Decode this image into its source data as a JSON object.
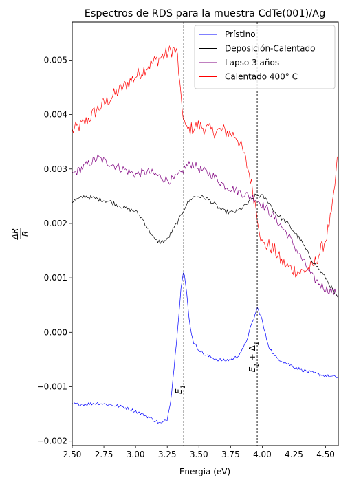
{
  "chart_data": {
    "type": "line",
    "title": "Espectros de RDS para la muestra CdTe(001)/Ag",
    "xlabel": "Energia (eV)",
    "ylabel": "ΔR/R",
    "xlim": [
      2.5,
      4.6
    ],
    "ylim": [
      -0.00208,
      0.0057
    ],
    "xticks": [
      2.5,
      2.75,
      3.0,
      3.25,
      3.5,
      3.75,
      4.0,
      4.25,
      4.5
    ],
    "xtick_labels": [
      "2.50",
      "2.75",
      "3.00",
      "3.25",
      "3.50",
      "3.75",
      "4.00",
      "4.25",
      "4.50"
    ],
    "yticks": [
      -0.002,
      -0.001,
      0.0,
      0.001,
      0.002,
      0.003,
      0.004,
      0.005
    ],
    "ytick_labels": [
      "−0.002",
      "−0.001",
      "0.000",
      "0.001",
      "0.002",
      "0.003",
      "0.004",
      "0.005"
    ],
    "legend_position": "upper-right",
    "grid": false,
    "series": [
      {
        "name": "Prístino",
        "color": "#0000ff",
        "noise": 3e-05,
        "x": [
          2.5,
          2.6,
          2.7,
          2.8,
          2.9,
          3.0,
          3.1,
          3.15,
          3.2,
          3.25,
          3.28,
          3.31,
          3.34,
          3.36,
          3.38,
          3.4,
          3.43,
          3.46,
          3.5,
          3.55,
          3.6,
          3.65,
          3.7,
          3.75,
          3.8,
          3.85,
          3.88,
          3.91,
          3.94,
          3.96,
          3.99,
          4.02,
          4.05,
          4.1,
          4.2,
          4.3,
          4.4,
          4.5,
          4.6
        ],
        "y": [
          -0.00132,
          -0.00132,
          -0.0013,
          -0.00133,
          -0.00137,
          -0.00145,
          -0.00155,
          -0.00162,
          -0.00168,
          -0.0016,
          -0.0012,
          -0.0005,
          0.0003,
          0.00085,
          0.00112,
          0.0008,
          0.0001,
          -0.0002,
          -0.00032,
          -0.00042,
          -0.00046,
          -0.0005,
          -0.00052,
          -0.0005,
          -0.00045,
          -0.0003,
          -0.00012,
          0.0001,
          0.0003,
          0.00045,
          0.0003,
          0.0,
          -0.00025,
          -0.00045,
          -0.00058,
          -0.00068,
          -0.00075,
          -0.0008,
          -0.00083
        ]
      },
      {
        "name": "Deposición-Calentado",
        "color": "#000000",
        "noise": 4e-05,
        "x": [
          2.5,
          2.6,
          2.7,
          2.8,
          2.9,
          3.0,
          3.05,
          3.1,
          3.15,
          3.2,
          3.25,
          3.3,
          3.35,
          3.4,
          3.45,
          3.5,
          3.55,
          3.6,
          3.65,
          3.7,
          3.75,
          3.8,
          3.85,
          3.9,
          3.95,
          4.0,
          4.05,
          4.1,
          4.2,
          4.3,
          4.4,
          4.5,
          4.6
        ],
        "y": [
          0.0024,
          0.0025,
          0.00245,
          0.0024,
          0.0023,
          0.00222,
          0.0021,
          0.0019,
          0.0017,
          0.00165,
          0.0017,
          0.0019,
          0.0021,
          0.00235,
          0.00248,
          0.0025,
          0.00247,
          0.0024,
          0.0023,
          0.00222,
          0.0022,
          0.00222,
          0.0023,
          0.0024,
          0.00252,
          0.0025,
          0.0024,
          0.0022,
          0.002,
          0.0017,
          0.0013,
          0.001,
          0.0006
        ]
      },
      {
        "name": "Lapso 3 años",
        "color": "#800080",
        "noise": 8e-05,
        "x": [
          2.5,
          2.6,
          2.7,
          2.8,
          2.9,
          3.0,
          3.1,
          3.2,
          3.25,
          3.3,
          3.35,
          3.4,
          3.45,
          3.5,
          3.6,
          3.7,
          3.8,
          3.9,
          3.95,
          4.0,
          4.1,
          4.2,
          4.3,
          4.4,
          4.5,
          4.6
        ],
        "y": [
          0.0029,
          0.00305,
          0.0032,
          0.0031,
          0.003,
          0.0029,
          0.00295,
          0.00285,
          0.0028,
          0.0028,
          0.0029,
          0.00305,
          0.0031,
          0.003,
          0.0029,
          0.0027,
          0.0026,
          0.0025,
          0.00245,
          0.00235,
          0.0021,
          0.0018,
          0.0014,
          0.001,
          0.0008,
          0.0007
        ]
      },
      {
        "name": "Calentado 400° C",
        "color": "#ff0000",
        "noise": 0.00013,
        "x": [
          2.5,
          2.6,
          2.7,
          2.8,
          2.9,
          3.0,
          3.1,
          3.2,
          3.3,
          3.33,
          3.36,
          3.4,
          3.5,
          3.6,
          3.7,
          3.8,
          3.85,
          3.9,
          3.95,
          4.0,
          4.05,
          4.1,
          4.15,
          4.2,
          4.3,
          4.4,
          4.5,
          4.55,
          4.6
        ],
        "y": [
          0.0037,
          0.00385,
          0.0041,
          0.0043,
          0.0045,
          0.0047,
          0.0049,
          0.00505,
          0.0052,
          0.0051,
          0.0042,
          0.0037,
          0.0038,
          0.0037,
          0.0037,
          0.0036,
          0.0033,
          0.0029,
          0.0023,
          0.0016,
          0.0016,
          0.0015,
          0.0013,
          0.0012,
          0.0011,
          0.0012,
          0.0017,
          0.0022,
          0.0033
        ]
      }
    ],
    "reference_lines": [
      {
        "x": 3.38,
        "label": "E",
        "label_sub": "1",
        "label_y": -0.00105
      },
      {
        "x": 3.96,
        "label": "E",
        "label_sub": "1",
        "label_rest": " + Δ",
        "label_sub2": "1",
        "label_y": -0.00045
      }
    ]
  }
}
